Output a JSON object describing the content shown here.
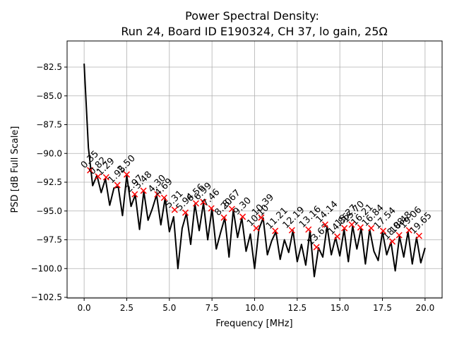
{
  "chart_data": {
    "type": "line",
    "title": [
      "Power Spectral Density:",
      "Run 24, Board ID E190324, CH 37, lo gain, 25Ω"
    ],
    "x_label": "Frequency [MHz]",
    "y_label": "PSD [dB Full Scale]",
    "xlim": [
      -1,
      21
    ],
    "ylim": [
      -102.56,
      -80.23
    ],
    "grid": true,
    "xticks": [
      {
        "value": 0,
        "label": "0.0"
      },
      {
        "value": 2.5,
        "label": "2.5"
      },
      {
        "value": 5,
        "label": "5.0"
      },
      {
        "value": 7.5,
        "label": "7.5"
      },
      {
        "value": 10,
        "label": "10.0"
      },
      {
        "value": 12.5,
        "label": "12.5"
      },
      {
        "value": 15,
        "label": "15.0"
      },
      {
        "value": 17.5,
        "label": "17.5"
      },
      {
        "value": 20,
        "label": "20.0"
      }
    ],
    "yticks": [
      {
        "value": -82.5,
        "label": "−82.5"
      },
      {
        "value": -85,
        "label": "−85.0"
      },
      {
        "value": -87.5,
        "label": "−87.5"
      },
      {
        "value": -90,
        "label": "−90.0"
      },
      {
        "value": -92.5,
        "label": "−92.5"
      },
      {
        "value": -95,
        "label": "−95.0"
      },
      {
        "value": -97.5,
        "label": "−97.5"
      },
      {
        "value": -100,
        "label": "−100.0"
      },
      {
        "value": -102.5,
        "label": "−102.5"
      }
    ],
    "x": [
      0,
      0.25,
      0.5,
      0.75,
      1,
      1.25,
      1.5,
      1.75,
      2,
      2.25,
      2.5,
      2.75,
      3,
      3.25,
      3.5,
      3.75,
      4,
      4.25,
      4.5,
      4.75,
      5,
      5.25,
      5.5,
      5.75,
      6,
      6.25,
      6.5,
      6.75,
      7,
      7.25,
      7.5,
      7.75,
      8,
      8.25,
      8.5,
      8.75,
      9,
      9.25,
      9.5,
      9.75,
      10,
      10.25,
      10.5,
      10.75,
      11,
      11.25,
      11.5,
      11.75,
      12,
      12.25,
      12.5,
      12.75,
      13,
      13.25,
      13.5,
      13.75,
      14,
      14.25,
      14.5,
      14.75,
      15,
      15.25,
      15.5,
      15.75,
      16,
      16.25,
      16.5,
      16.75,
      17,
      17.25,
      17.5,
      17.75,
      18,
      18.25,
      18.5,
      18.75,
      19,
      19.25,
      19.5,
      19.75,
      20
    ],
    "series": [
      {
        "color": "#000000",
        "values": [
          -82.2,
          -89.5,
          -92.8,
          -91.9,
          -93.4,
          -92.2,
          -94.5,
          -93.0,
          -92.9,
          -95.4,
          -91.9,
          -94.6,
          -93.6,
          -96.6,
          -93.3,
          -95.8,
          -94.8,
          -93.6,
          -96.2,
          -93.9,
          -96.8,
          -95.5,
          -100.0,
          -96.5,
          -95.2,
          -97.9,
          -94.4,
          -96.7,
          -94.3,
          -97.5,
          -94.8,
          -98.3,
          -96.9,
          -95.6,
          -99.0,
          -94.9,
          -97.3,
          -95.6,
          -98.5,
          -97.0,
          -100.0,
          -96.6,
          -95.6,
          -98.8,
          -97.6,
          -96.8,
          -99.2,
          -97.5,
          -98.6,
          -96.7,
          -99.4,
          -97.9,
          -99.7,
          -96.7,
          -100.7,
          -98.2,
          -99.0,
          -96.3,
          -98.8,
          -97.3,
          -98.9,
          -96.6,
          -99.4,
          -96.3,
          -98.3,
          -96.5,
          -99.6,
          -96.6,
          -98.5,
          -99.3,
          -96.8,
          -98.8,
          -97.7,
          -100.2,
          -97.2,
          -99.0,
          -96.8,
          -99.6,
          -97.3,
          -99.5,
          -98.2
        ]
      }
    ],
    "peaks": {
      "color": "#ff0000",
      "x": [
        0.35,
        0.82,
        1.29,
        1.95,
        2.5,
        2.97,
        3.48,
        4.3,
        4.69,
        5.31,
        5.94,
        6.56,
        6.99,
        7.46,
        8.2,
        8.67,
        9.3,
        10.1,
        10.39,
        11.21,
        12.19,
        13.16,
        13.63,
        14.14,
        14.85,
        15.27,
        15.7,
        16.21,
        16.84,
        17.54,
        18.08,
        18.48,
        19.06,
        19.65
      ],
      "x_labels": [
        "0.35",
        "0.82",
        "1.29",
        "1.95",
        "2.50",
        "2.97",
        "3.48",
        "4.30",
        "4.69",
        "5.31",
        "5.94",
        "6.56",
        "6.99",
        "7.46",
        "8.20",
        "8.67",
        "9.30",
        "10.10",
        "10.39",
        "11.21",
        "12.19",
        "13.16",
        "13.63",
        "14.14",
        "14.85",
        "15.27",
        "15.70",
        "16.21",
        "16.84",
        "17.54",
        "18.08",
        "18.48",
        "19.06",
        "19.65"
      ],
      "values": [
        -91.46,
        -92.0,
        -92.07,
        -92.75,
        -91.83,
        -93.55,
        -93.24,
        -93.55,
        -93.85,
        -94.9,
        -95.14,
        -94.34,
        -94.22,
        -94.77,
        -95.57,
        -94.83,
        -95.5,
        -96.49,
        -95.57,
        -96.73,
        -96.67,
        -96.61,
        -98.14,
        -96.18,
        -97.22,
        -96.49,
        -96.18,
        -96.43,
        -96.49,
        -96.73,
        -97.65,
        -97.1,
        -96.67,
        -97.16
      ]
    }
  }
}
